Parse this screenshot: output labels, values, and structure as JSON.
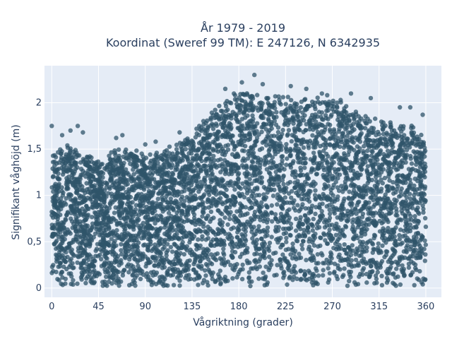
{
  "chart_data": {
    "type": "scatter",
    "title": [
      "År 1979 - 2019",
      "Koordinat (Sweref 99 TM): E 247126, N 6342935"
    ],
    "xlabel": "Vågriktning (grader)",
    "ylabel": "Signifikant våghöjd (m)",
    "xlim": [
      -7,
      375
    ],
    "ylim": [
      -0.1,
      2.4
    ],
    "xticks": [
      0,
      45,
      90,
      135,
      180,
      225,
      270,
      315,
      360
    ],
    "xtick_labels": [
      "0",
      "45",
      "90",
      "135",
      "180",
      "225",
      "270",
      "315",
      "360"
    ],
    "yticks": [
      0,
      0.5,
      1,
      1.5,
      2
    ],
    "ytick_labels": [
      "0",
      "0,5",
      "1",
      "1,5",
      "2"
    ],
    "grid": true,
    "marker_color": "#2f5469",
    "background_color": "#e5ecf6",
    "upper_envelope": {
      "x": [
        0,
        15,
        30,
        45,
        60,
        75,
        90,
        105,
        120,
        135,
        150,
        165,
        180,
        195,
        210,
        225,
        240,
        255,
        270,
        285,
        300,
        315,
        330,
        345,
        360
      ],
      "y": [
        1.45,
        1.5,
        1.45,
        1.35,
        1.45,
        1.5,
        1.4,
        1.45,
        1.55,
        1.65,
        1.85,
        2.0,
        2.1,
        2.1,
        2.05,
        2.05,
        2.05,
        2.05,
        2.05,
        1.95,
        1.8,
        1.8,
        1.75,
        1.75,
        1.55
      ]
    },
    "outlier_points": [
      {
        "x": 0,
        "y": 1.75
      },
      {
        "x": 10,
        "y": 1.65
      },
      {
        "x": 18,
        "y": 1.7
      },
      {
        "x": 25,
        "y": 1.75
      },
      {
        "x": 30,
        "y": 1.68
      },
      {
        "x": 62,
        "y": 1.62
      },
      {
        "x": 68,
        "y": 1.65
      },
      {
        "x": 90,
        "y": 1.55
      },
      {
        "x": 100,
        "y": 1.58
      },
      {
        "x": 123,
        "y": 1.68
      },
      {
        "x": 142,
        "y": 1.75
      },
      {
        "x": 167,
        "y": 2.15
      },
      {
        "x": 183,
        "y": 2.22
      },
      {
        "x": 195,
        "y": 2.3
      },
      {
        "x": 203,
        "y": 2.2
      },
      {
        "x": 230,
        "y": 2.18
      },
      {
        "x": 245,
        "y": 2.15
      },
      {
        "x": 260,
        "y": 2.1
      },
      {
        "x": 288,
        "y": 2.1
      },
      {
        "x": 307,
        "y": 2.05
      },
      {
        "x": 335,
        "y": 1.95
      },
      {
        "x": 345,
        "y": 1.95
      },
      {
        "x": 357,
        "y": 1.87
      }
    ]
  }
}
